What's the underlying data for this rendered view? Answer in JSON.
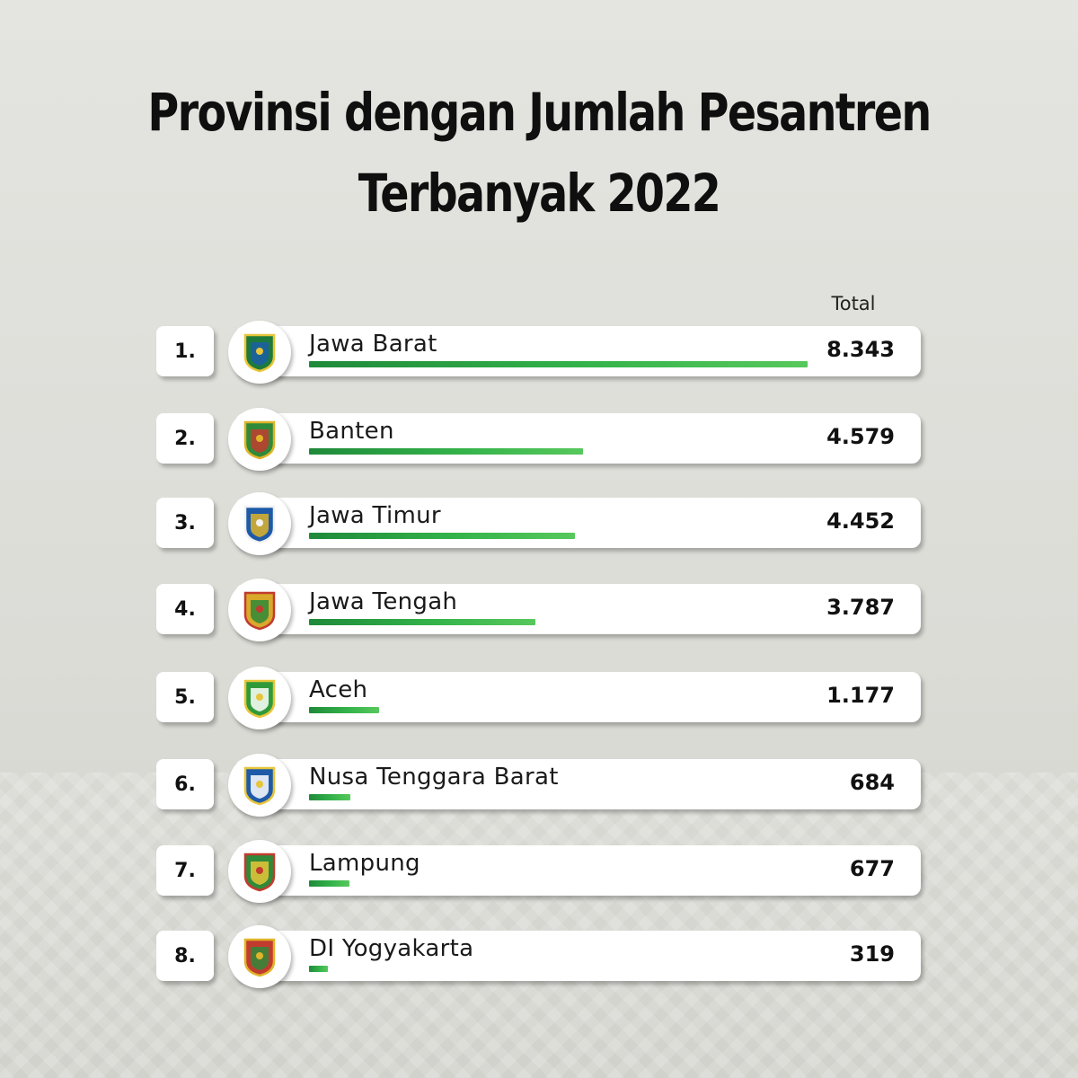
{
  "title_line1": "Provinsi dengan Jumlah Pesantren",
  "title_line2": "Terbanyak 2022",
  "column_header": "Total",
  "chart_data": {
    "type": "bar",
    "title": "Provinsi dengan Jumlah Pesantren Terbanyak 2022",
    "categories": [
      "Jawa Barat",
      "Banten",
      "Jawa Timur",
      "Jawa Tengah",
      "Aceh",
      "Nusa Tenggara Barat",
      "Lampung",
      "DI Yogyakarta"
    ],
    "values": [
      8343,
      4579,
      4452,
      3787,
      1177,
      684,
      677,
      319
    ],
    "xlim": [
      0,
      8343
    ],
    "bar_color": "#2fa847",
    "rows": [
      {
        "rank": "1.",
        "name": "Jawa Barat",
        "value": 8343,
        "value_label": "8.343",
        "emblem_icon": "jawa-barat-emblem-icon",
        "emblem_colors": [
          "#1e7a3a",
          "#e8c53a",
          "#1b5fa8"
        ]
      },
      {
        "rank": "2.",
        "name": "Banten",
        "value": 4579,
        "value_label": "4.579",
        "emblem_icon": "banten-emblem-icon",
        "emblem_colors": [
          "#2f8a3a",
          "#e0b428",
          "#c23b2f"
        ]
      },
      {
        "rank": "3.",
        "name": "Jawa Timur",
        "value": 4452,
        "value_label": "4.452",
        "emblem_icon": "jawa-timur-emblem-icon",
        "emblem_colors": [
          "#1e5aa8",
          "#f2f2f2",
          "#e0b428"
        ]
      },
      {
        "rank": "4.",
        "name": "Jawa Tengah",
        "value": 3787,
        "value_label": "3.787",
        "emblem_icon": "jawa-tengah-emblem-icon",
        "emblem_colors": [
          "#d8a92a",
          "#c23b2f",
          "#2f8a3a"
        ]
      },
      {
        "rank": "5.",
        "name": "Aceh",
        "value": 1177,
        "value_label": "1.177",
        "emblem_icon": "aceh-emblem-icon",
        "emblem_colors": [
          "#2f9a3a",
          "#e8c53a",
          "#ffffff"
        ]
      },
      {
        "rank": "6.",
        "name": "Nusa Tenggara Barat",
        "value": 684,
        "value_label": "684",
        "emblem_icon": "ntb-emblem-icon",
        "emblem_colors": [
          "#1e5aa8",
          "#e8c53a",
          "#ffffff"
        ]
      },
      {
        "rank": "7.",
        "name": "Lampung",
        "value": 677,
        "value_label": "677",
        "emblem_icon": "lampung-emblem-icon",
        "emblem_colors": [
          "#2f8a3a",
          "#c23b2f",
          "#e8c53a"
        ]
      },
      {
        "rank": "8.",
        "name": "DI Yogyakarta",
        "value": 319,
        "value_label": "319",
        "emblem_icon": "yogyakarta-emblem-icon",
        "emblem_colors": [
          "#c23b2f",
          "#e0b428",
          "#2f8a3a"
        ]
      }
    ]
  }
}
